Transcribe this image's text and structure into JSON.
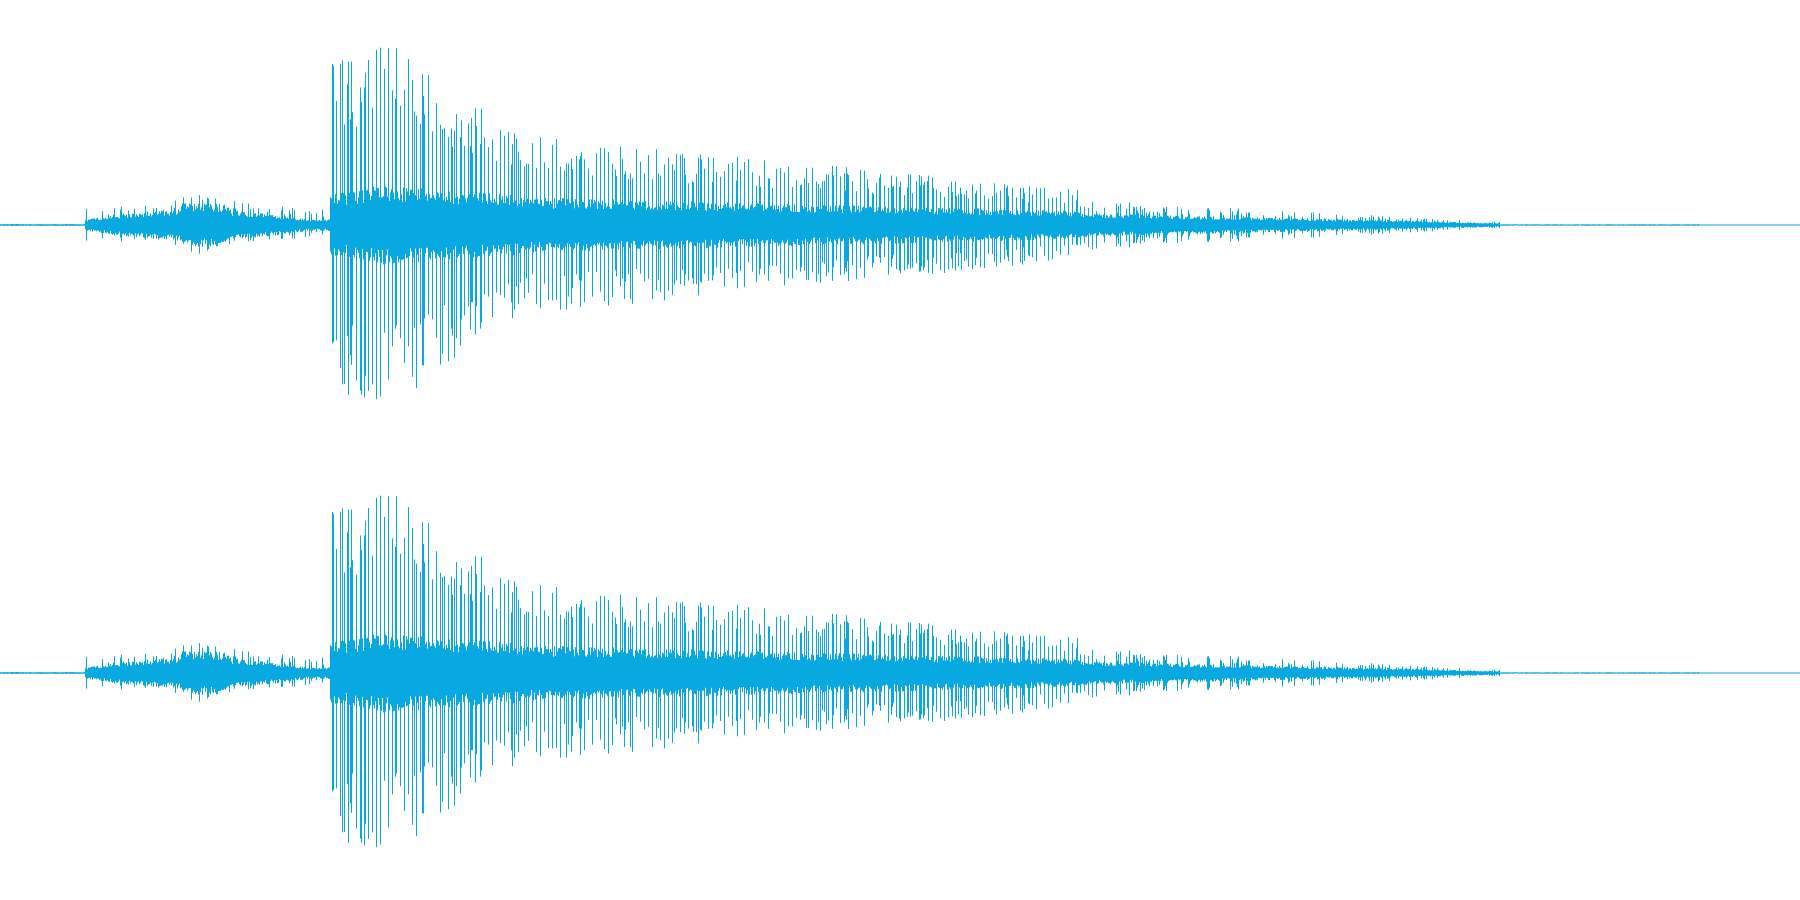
{
  "waveform": {
    "color": "#08a8e0",
    "background": "#ffffff",
    "channels": [
      {
        "name": ""
      },
      {
        "name": ""
      }
    ]
  }
}
